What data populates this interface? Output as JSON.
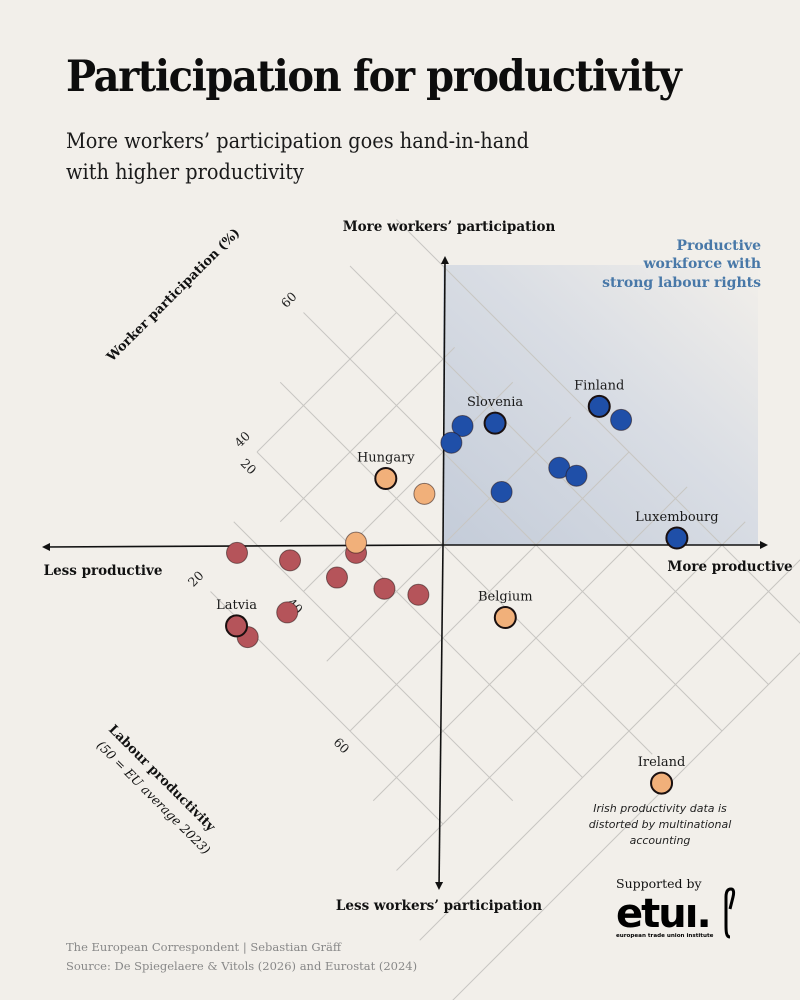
{
  "header": {
    "title": "Participation for productivity",
    "subtitle_line1": "More workers’ participation goes hand-in-hand",
    "subtitle_line2": "with higher productivity"
  },
  "chart_data": {
    "type": "scatter",
    "title": "Participation for productivity",
    "subtitle": "More workers’ participation goes hand-in-hand with higher productivity",
    "orientation": "rotated 45°: participation increases toward top-right, productivity increases toward bottom-right",
    "center": {
      "productivity": 50,
      "participation": 50
    },
    "participation_axis": {
      "label": "Worker participation (%)",
      "ticks": [
        20,
        40,
        60
      ],
      "range": [
        0,
        90
      ]
    },
    "productivity_axis": {
      "label": "Labour productivity",
      "sublabel": "(50 = EU average 2023)",
      "ticks": [
        20,
        40,
        60
      ],
      "range": [
        10,
        100
      ]
    },
    "quadrant_labels": {
      "up": "More workers’ participation",
      "down": "Less workers’ participation",
      "left": "Less productive",
      "right": "More productive"
    },
    "highlight_region": {
      "label_line1": "Productive",
      "label_line2": "workforce with",
      "label_line3": "strong labour rights",
      "color": "#4878a8"
    },
    "colors": {
      "high_both": "#1f4fa8",
      "mixed": "#f1b07a",
      "low_both": "#b5545a",
      "region_fill": "#c9d1de"
    },
    "points": [
      {
        "label": "Slovenia",
        "group": "high_both",
        "productivity": 42.5,
        "participation": 68.7
      },
      {
        "label": "",
        "group": "high_both",
        "productivity": 39.3,
        "participation": 64.9
      },
      {
        "label": "",
        "group": "high_both",
        "productivity": 39.9,
        "participation": 61.9
      },
      {
        "label": "Finland",
        "group": "high_both",
        "productivity": 51.9,
        "participation": 81.7
      },
      {
        "label": "",
        "group": "high_both",
        "productivity": 55.7,
        "participation": 82.6
      },
      {
        "label": "",
        "group": "high_both",
        "productivity": 54.2,
        "participation": 70.8
      },
      {
        "label": "",
        "group": "high_both",
        "productivity": 56.9,
        "participation": 71.8
      },
      {
        "label": "",
        "group": "high_both",
        "productivity": 50.6,
        "participation": 62.0
      },
      {
        "label": "Luxembourg",
        "group": "high_both",
        "productivity": 74.4,
        "participation": 75.9
      },
      {
        "label": "Hungary",
        "group": "mixed",
        "productivity": 36.7,
        "participation": 51.0
      },
      {
        "label": "",
        "group": "mixed",
        "productivity": 42.5,
        "participation": 53.5
      },
      {
        "label": "Belgium",
        "group": "mixed",
        "productivity": 64.5,
        "participation": 48.9
      },
      {
        "label": "Ireland",
        "group": "mixed",
        "productivity": 99.1,
        "participation": 47.9
      },
      {
        "label": "",
        "group": "low_both",
        "productivity": 28.7,
        "participation": 27.0
      },
      {
        "label": "",
        "group": "low_both",
        "productivity": 35.2,
        "participation": 31.9
      },
      {
        "label": "",
        "group": "low_both",
        "productivity": 41.5,
        "participation": 39.8
      },
      {
        "label": "",
        "group": "mixed",
        "productivity": 40.4,
        "participation": 40.9
      },
      {
        "label": "",
        "group": "low_both",
        "productivity": 42.1,
        "participation": 35.1
      },
      {
        "label": "",
        "group": "low_both",
        "productivity": 48.4,
        "participation": 39.0
      },
      {
        "label": "",
        "group": "low_both",
        "productivity": 52.7,
        "participation": 42.0
      },
      {
        "label": "",
        "group": "low_both",
        "productivity": 40.5,
        "participation": 26.0
      },
      {
        "label": "Latvia",
        "group": "low_both",
        "productivity": 36.5,
        "participation": 19.1
      },
      {
        "label": "",
        "group": "low_both",
        "productivity": 38.9,
        "participation": 19.1
      }
    ],
    "annotations": {
      "ireland_note_line1": "Irish productivity data is",
      "ireland_note_line2": "distorted by multinational",
      "ireland_note_line3": "accounting"
    }
  },
  "footer": {
    "credit": "The European Correspondent | Sebastian Gräff",
    "source": "Source: De Spiegelaere & Vitols (2026) and Eurostat (2024)"
  },
  "sponsor": {
    "label": "Supported by",
    "logo_word": "etuı.",
    "logo_sub": "european trade union institute"
  }
}
